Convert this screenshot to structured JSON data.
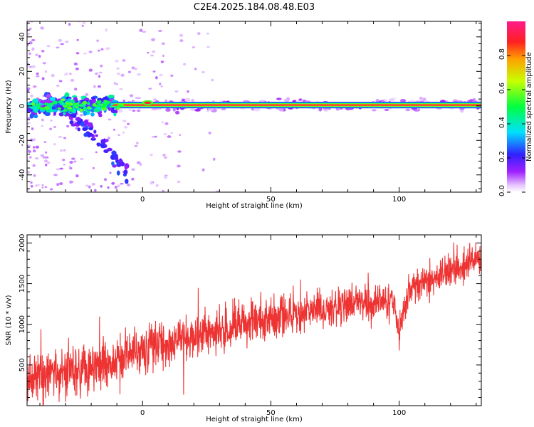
{
  "figure": {
    "title": "C2E4.2025.184.08.48.E03"
  },
  "chart_data": [
    {
      "type": "heatmap",
      "xlabel": "Height of straight line (km)",
      "ylabel": "Frequency (Hz)",
      "xlim": [
        -45,
        132
      ],
      "ylim": [
        -50,
        49
      ],
      "xticks": [
        0,
        50,
        100
      ],
      "yticks": [
        -40,
        -20,
        0,
        20,
        40
      ],
      "colorbar": {
        "label": "Normalized spectral amplitude",
        "range": [
          0,
          1
        ],
        "ticks": [
          "0.0",
          "0.2",
          "0.4",
          "0.6",
          "0.8"
        ],
        "colormap": [
          "#ffffff",
          "#e6c6ff",
          "#a020ff",
          "#3020ff",
          "#00e0ff",
          "#00ff40",
          "#c8ff00",
          "#ffa000",
          "#ff2020",
          "#ff1a8a"
        ]
      },
      "features": {
        "main_line": {
          "freq": 0.5,
          "x_range": [
            -12,
            132
          ],
          "amplitude": 0.9
        },
        "early_band": {
          "x_range": [
            -45,
            -10
          ],
          "freq_range": [
            -6,
            6
          ]
        },
        "diagonal_trail": {
          "x_range": [
            -38,
            -6
          ],
          "freq_range": [
            -38,
            2
          ]
        },
        "bump_near_zero": {
          "x": 2,
          "freq": 1.8
        }
      },
      "grid": false,
      "legend": "none"
    },
    {
      "type": "line",
      "xlabel": "Height of straight line (km)",
      "ylabel": "SNR (10 * v/v)",
      "xlim": [
        -45,
        132
      ],
      "ylim": [
        0,
        2100
      ],
      "xticks": [
        0,
        50,
        100
      ],
      "yticks": [
        500,
        1000,
        1500,
        2000
      ],
      "series": [
        {
          "color": "#ee3333",
          "trend": {
            "x": [
              -45,
              -20,
              0,
              20,
              50,
              80,
              98,
              100,
              104,
              115,
              132
            ],
            "y": [
              300,
              470,
              700,
              850,
              1080,
              1240,
              1270,
              900,
              1450,
              1580,
              1820
            ]
          },
          "noise_amplitude": [
            350,
            200
          ]
        }
      ],
      "grid": false,
      "legend": "none"
    }
  ]
}
